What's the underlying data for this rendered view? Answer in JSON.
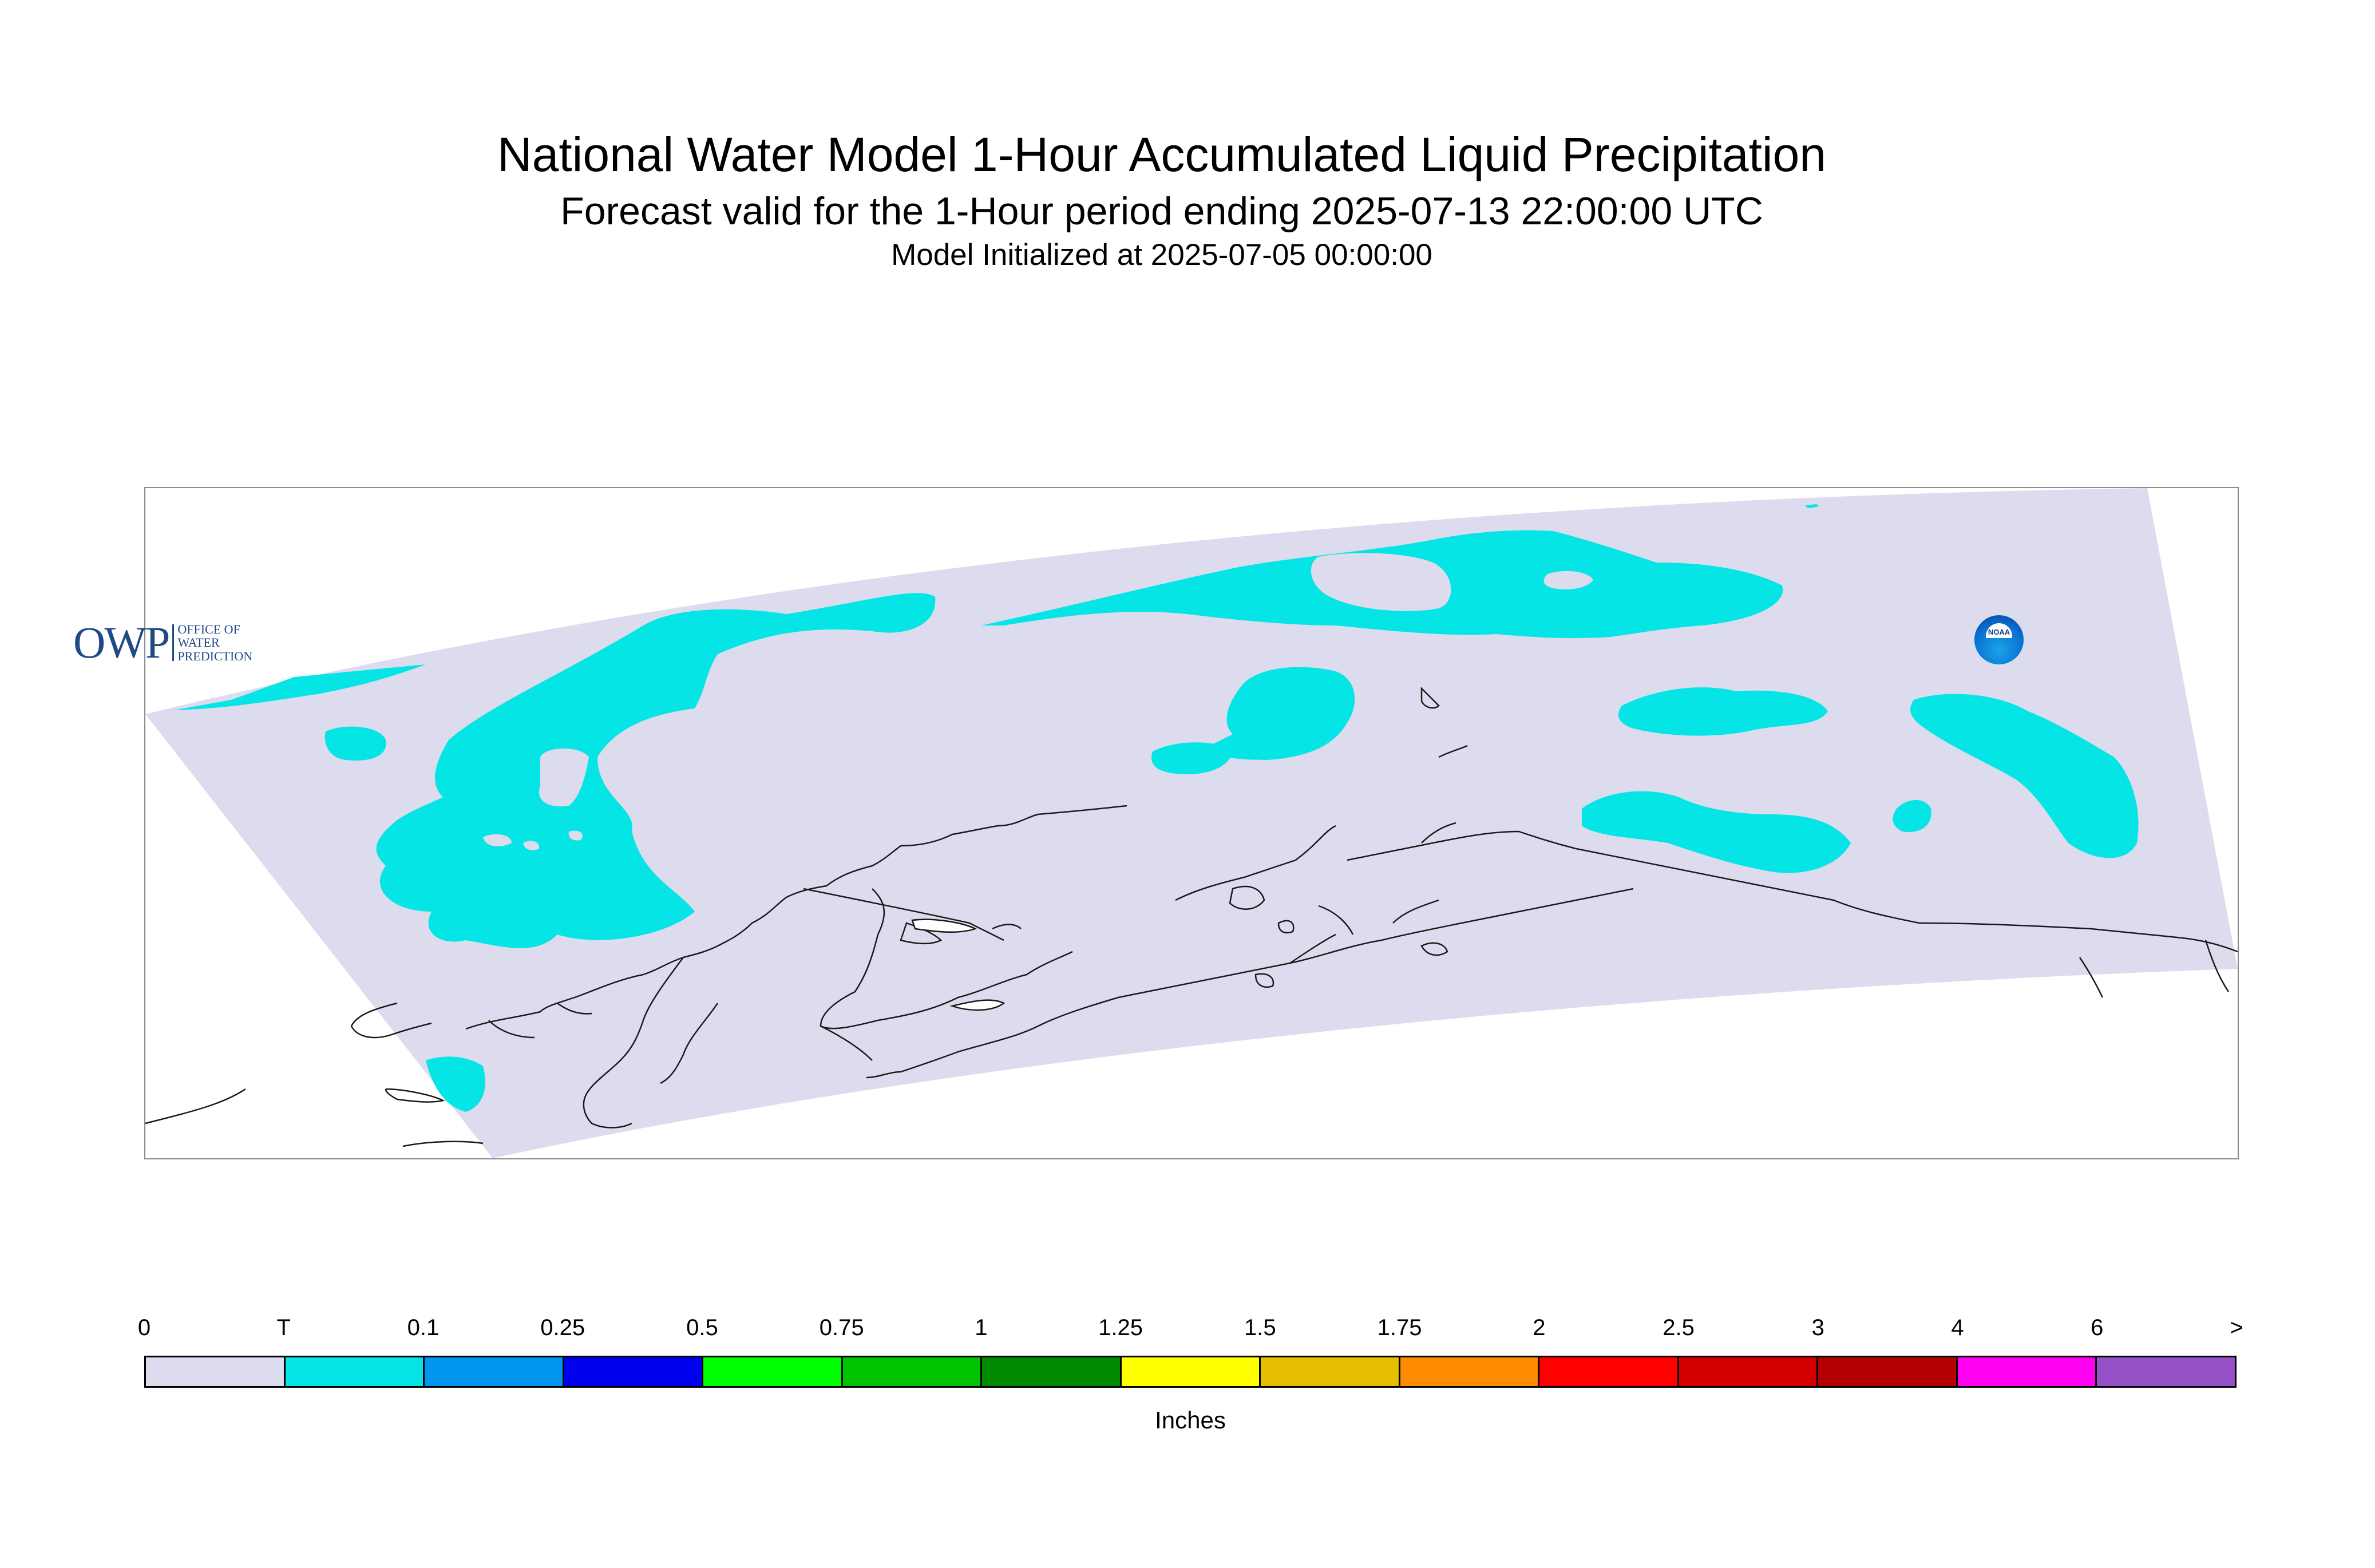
{
  "title": "National Water Model 1-Hour Accumulated Liquid Precipitation",
  "subtitle": "Forecast valid for the 1-Hour period ending 2025-07-13 22:00:00 UTC",
  "init_line": "Model Initialized at 2025-07-05 00:00:00",
  "owp_logo": {
    "mark": "OWP",
    "lines": [
      "OFFICE OF",
      "WATER",
      "PREDICTION"
    ]
  },
  "noaa_logo": {
    "label": "NOAA"
  },
  "colors": {
    "domain_fill": "#dcdcee",
    "precip_trace": "#05e5e5",
    "coastline": "#1a1a1a"
  },
  "legend": {
    "ticks": [
      "0",
      "T",
      "0.1",
      "0.25",
      "0.5",
      "0.75",
      "1",
      "1.25",
      "1.5",
      "1.75",
      "2",
      "2.5",
      "3",
      "4",
      "6",
      ">"
    ],
    "colors": [
      "#dcdcee",
      "#05e5e5",
      "#0096f0",
      "#0000f0",
      "#00ff00",
      "#00c400",
      "#008c00",
      "#ffff00",
      "#e6c000",
      "#ff8c00",
      "#ff0000",
      "#d40000",
      "#b40000",
      "#ff00f0",
      "#9650c8"
    ],
    "units": "Inches"
  }
}
